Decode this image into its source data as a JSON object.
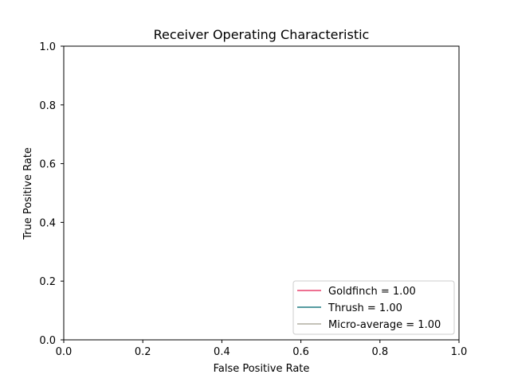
{
  "chart_data": {
    "type": "line",
    "title": "Receiver Operating Characteristic",
    "xlabel": "False Positive Rate",
    "ylabel": "True Positive Rate",
    "xlim": [
      0.0,
      1.0
    ],
    "ylim": [
      0.0,
      1.0
    ],
    "xticks": [
      "0.0",
      "0.2",
      "0.4",
      "0.6",
      "0.8",
      "1.0"
    ],
    "yticks": [
      "0.0",
      "0.2",
      "0.4",
      "0.6",
      "0.8",
      "1.0"
    ],
    "grid": false,
    "legend_position": "bottom-right",
    "series": [
      {
        "name": "Goldfinch = 1.00",
        "color": "#e8426f",
        "x": [],
        "y": []
      },
      {
        "name": "Thrush = 1.00",
        "color": "#1f7a82",
        "x": [],
        "y": []
      },
      {
        "name": "Micro-average = 1.00",
        "color": "#b0ada0",
        "x": [],
        "y": []
      }
    ]
  }
}
